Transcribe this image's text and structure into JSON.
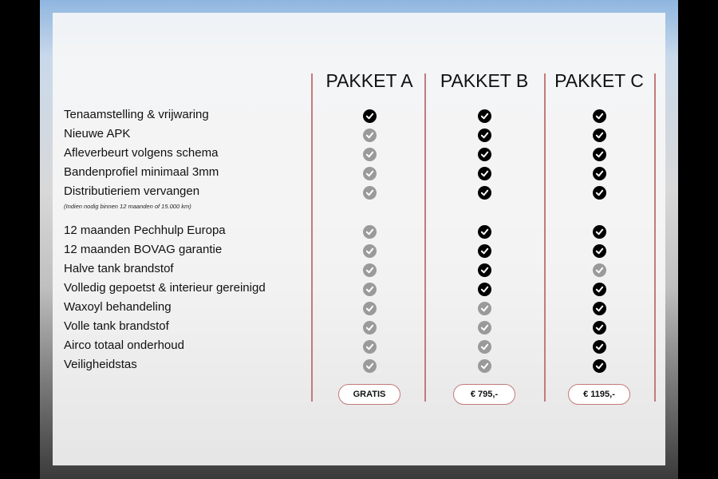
{
  "colors": {
    "included": "#000000",
    "not_included": "#9a9a9a",
    "divider": "#c47a7a"
  },
  "packages": [
    {
      "name": "PAKKET A",
      "price": "GRATIS"
    },
    {
      "name": "PAKKET B",
      "price": "€ 795,-"
    },
    {
      "name": "PAKKET C",
      "price": "€ 1195,-"
    }
  ],
  "features": [
    {
      "label": "Tenaamstelling & vrijwaring",
      "included": [
        true,
        true,
        true
      ]
    },
    {
      "label": "Nieuwe APK",
      "included": [
        false,
        true,
        true
      ]
    },
    {
      "label": "Afleverbeurt volgens schema",
      "included": [
        false,
        true,
        true
      ]
    },
    {
      "label": "Bandenprofiel minimaal 3mm",
      "included": [
        false,
        true,
        true
      ]
    },
    {
      "label": "Distributieriem vervangen",
      "note": "(Indien nodig binnen 12 maanden of 15.000 km)",
      "included": [
        false,
        true,
        true
      ]
    },
    {
      "label": "12 maanden Pechhulp Europa",
      "included": [
        false,
        true,
        true
      ]
    },
    {
      "label": "12 maanden BOVAG garantie",
      "included": [
        false,
        true,
        true
      ]
    },
    {
      "label": "Halve tank brandstof",
      "included": [
        false,
        true,
        false
      ]
    },
    {
      "label": "Volledig gepoetst & interieur gereinigd",
      "included": [
        false,
        true,
        true
      ]
    },
    {
      "label": "Waxoyl behandeling",
      "included": [
        false,
        false,
        true
      ]
    },
    {
      "label": "Volle tank brandstof",
      "included": [
        false,
        false,
        true
      ]
    },
    {
      "label": "Airco totaal onderhoud",
      "included": [
        false,
        false,
        true
      ]
    },
    {
      "label": "Veiligheidstas",
      "included": [
        false,
        false,
        true
      ]
    }
  ]
}
